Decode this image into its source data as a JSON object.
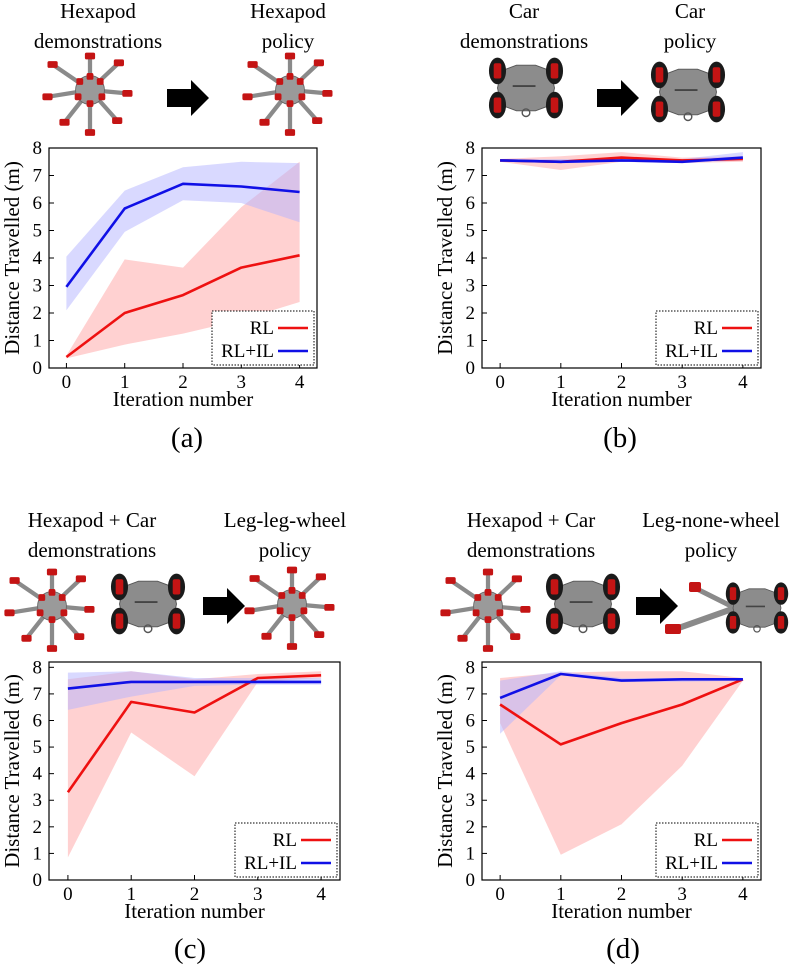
{
  "colors": {
    "rl": "#ee1111",
    "rl_band": "#ffb3b3",
    "il": "#1010e6",
    "il_band": "#b3b3ff",
    "robot_red": "#c41414",
    "robot_gray": "#8a8a8a"
  },
  "icons": {
    "arrow": "arrow-right-icon",
    "hexapod": "hexapod-robot-icon",
    "car": "car-robot-icon"
  },
  "panels": [
    {
      "caption": "(a)",
      "header": {
        "left_line1": "Hexapod",
        "left_line2": "demonstrations",
        "right_line1": "Hexapod",
        "right_line2": "policy"
      }
    },
    {
      "caption": "(b)",
      "header": {
        "left_line1": "Car",
        "left_line2": "demonstrations",
        "right_line1": "Car",
        "right_line2": "policy"
      }
    },
    {
      "caption": "(c)",
      "header": {
        "left_line1": "Hexapod + Car",
        "left_line2": "demonstrations",
        "right_line1": "Leg-leg-wheel",
        "right_line2": "policy"
      }
    },
    {
      "caption": "(d)",
      "header": {
        "left_line1": "Hexapod + Car",
        "left_line2": "demonstrations",
        "right_line1": "Leg-none-wheel",
        "right_line2": "policy"
      }
    }
  ],
  "chart_data": [
    {
      "type": "line",
      "xlabel": "Iteration number",
      "ylabel": "Distance Travelled (m)",
      "x": [
        0,
        1,
        2,
        3,
        4
      ],
      "xticks": [
        0,
        1,
        2,
        3,
        4
      ],
      "ylim": [
        0,
        8
      ],
      "yticks": [
        0,
        1,
        2,
        3,
        4,
        5,
        6,
        7,
        8
      ],
      "legend": "bottom-right",
      "series": [
        {
          "name": "RL",
          "values": [
            0.4,
            2.0,
            2.65,
            3.65,
            4.1
          ],
          "lower": [
            0.35,
            0.85,
            1.25,
            1.75,
            2.4
          ],
          "upper": [
            0.45,
            3.95,
            3.65,
            5.85,
            7.5
          ]
        },
        {
          "name": "RL+IL",
          "values": [
            2.95,
            5.8,
            6.7,
            6.6,
            6.4
          ],
          "lower": [
            2.1,
            4.95,
            6.1,
            6.0,
            5.3
          ],
          "upper": [
            4.05,
            6.45,
            7.3,
            7.5,
            7.45
          ]
        }
      ]
    },
    {
      "type": "line",
      "xlabel": "Iteration number",
      "ylabel": "Distance Travelled (m)",
      "x": [
        0,
        1,
        2,
        3,
        4
      ],
      "xticks": [
        0,
        1,
        2,
        3,
        4
      ],
      "ylim": [
        0,
        8
      ],
      "yticks": [
        0,
        1,
        2,
        3,
        4,
        5,
        6,
        7,
        8
      ],
      "legend": "bottom-right",
      "series": [
        {
          "name": "RL",
          "values": [
            7.55,
            7.5,
            7.65,
            7.55,
            7.6
          ],
          "lower": [
            7.5,
            7.2,
            7.5,
            7.45,
            7.5
          ],
          "upper": [
            7.6,
            7.7,
            7.85,
            7.65,
            7.7
          ]
        },
        {
          "name": "RL+IL",
          "values": [
            7.55,
            7.5,
            7.55,
            7.5,
            7.65
          ],
          "lower": [
            7.5,
            7.45,
            7.5,
            7.45,
            7.55
          ],
          "upper": [
            7.6,
            7.6,
            7.6,
            7.6,
            7.85
          ]
        }
      ]
    },
    {
      "type": "line",
      "xlabel": "Iteration number",
      "ylabel": "Distance Travelled (m)",
      "x": [
        0,
        1,
        2,
        3,
        4
      ],
      "xticks": [
        0,
        1,
        2,
        3,
        4
      ],
      "ylim": [
        0,
        8.2
      ],
      "yticks": [
        0,
        1,
        2,
        3,
        4,
        5,
        6,
        7,
        8
      ],
      "legend": "bottom-right",
      "series": [
        {
          "name": "RL",
          "values": [
            3.3,
            6.7,
            6.3,
            7.6,
            7.7
          ],
          "lower": [
            0.85,
            5.55,
            3.9,
            7.45,
            7.6
          ],
          "upper": [
            7.55,
            7.85,
            7.55,
            7.75,
            7.85
          ]
        },
        {
          "name": "RL+IL",
          "values": [
            7.2,
            7.45,
            7.45,
            7.45,
            7.45
          ],
          "lower": [
            6.4,
            6.9,
            7.3,
            7.35,
            7.35
          ],
          "upper": [
            7.8,
            7.85,
            7.6,
            7.6,
            7.6
          ]
        }
      ]
    },
    {
      "type": "line",
      "xlabel": "Iteration number",
      "ylabel": "Distance Travelled (m)",
      "x": [
        0,
        1,
        2,
        3,
        4
      ],
      "xticks": [
        0,
        1,
        2,
        3,
        4
      ],
      "ylim": [
        0,
        8.2
      ],
      "yticks": [
        0,
        1,
        2,
        3,
        4,
        5,
        6,
        7,
        8
      ],
      "legend": "bottom-right",
      "series": [
        {
          "name": "RL",
          "values": [
            6.6,
            5.1,
            5.9,
            6.6,
            7.55
          ],
          "lower": [
            5.9,
            0.95,
            2.1,
            4.3,
            7.5
          ],
          "upper": [
            7.6,
            7.8,
            7.85,
            7.85,
            7.6
          ]
        },
        {
          "name": "RL+IL",
          "values": [
            6.85,
            7.75,
            7.5,
            7.55,
            7.55
          ],
          "lower": [
            5.5,
            7.7,
            7.45,
            7.45,
            7.5
          ],
          "upper": [
            7.5,
            7.85,
            7.6,
            7.6,
            7.6
          ]
        }
      ]
    }
  ]
}
